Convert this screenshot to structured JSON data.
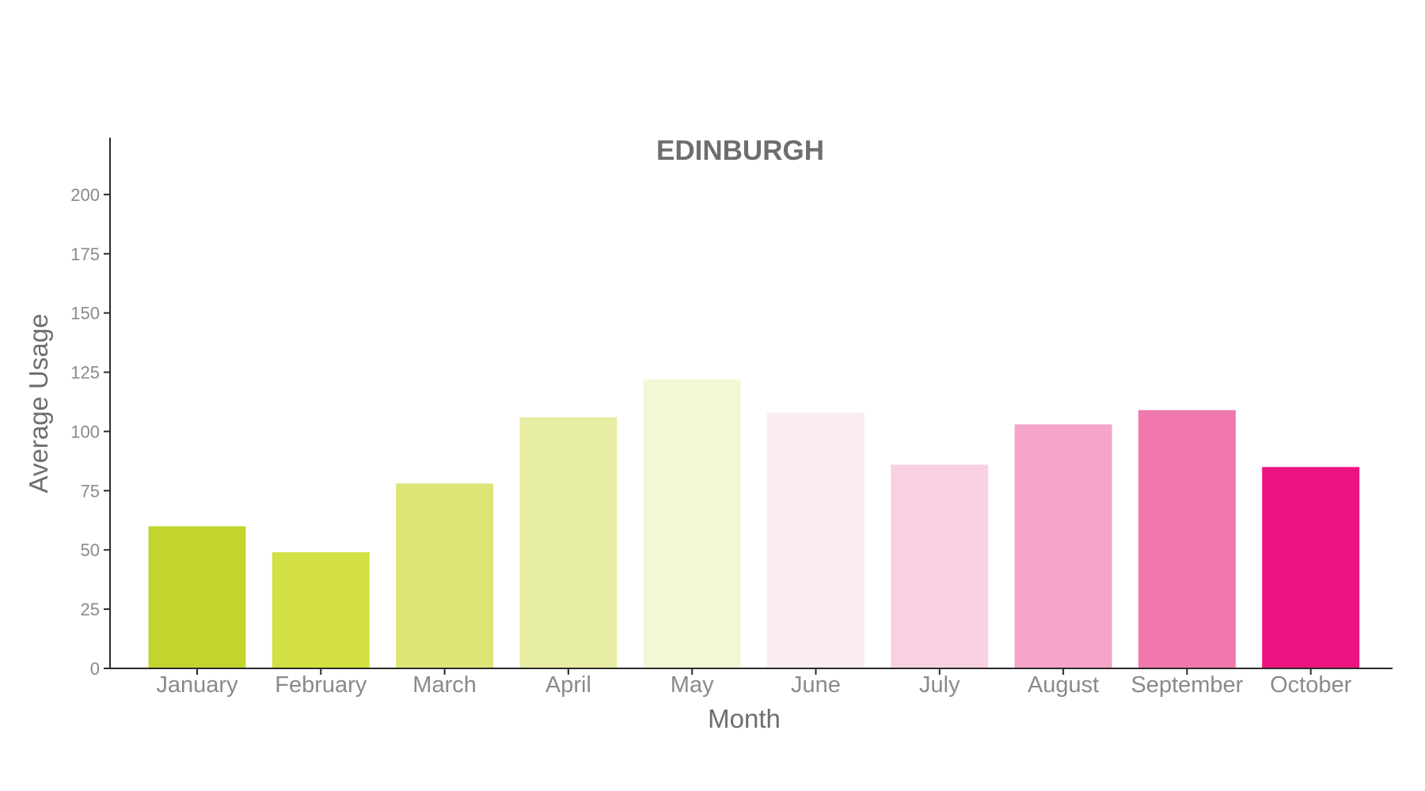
{
  "chart_data": {
    "type": "bar",
    "title": "EDINBURGH",
    "xlabel": "Month",
    "ylabel": "Average Usage",
    "categories": [
      "January",
      "February",
      "March",
      "April",
      "May",
      "June",
      "July",
      "August",
      "September",
      "October"
    ],
    "values": [
      60,
      49,
      78,
      106,
      122,
      108,
      86,
      103,
      109,
      85
    ],
    "colors": [
      "#c2d52e",
      "#d2e043",
      "#dee577",
      "#e8eda4",
      "#f4f7d3",
      "#fbebf2",
      "#f9d1e3",
      "#f4a5c9",
      "#f078ae",
      "#ec1380"
    ],
    "ylim": [
      0,
      224
    ],
    "yticks": [
      0,
      25,
      50,
      75,
      100,
      125,
      150,
      175,
      200
    ],
    "ytick_labels": [
      "0",
      "25",
      "50",
      "75",
      "100",
      "125",
      "150",
      "175",
      "200"
    ],
    "grid": false,
    "legend": "none"
  }
}
